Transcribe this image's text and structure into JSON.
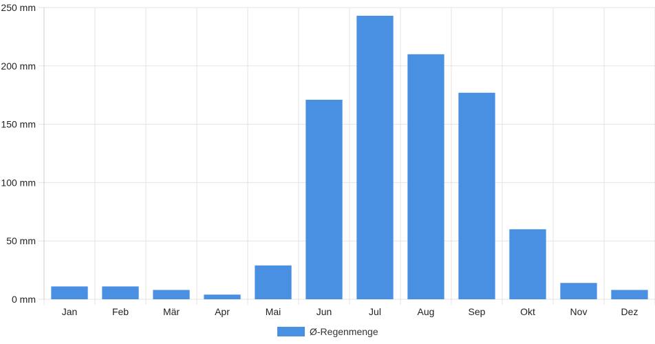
{
  "chart_data": {
    "type": "bar",
    "categories": [
      "Jan",
      "Feb",
      "Mär",
      "Apr",
      "Mai",
      "Jun",
      "Jul",
      "Aug",
      "Sep",
      "Okt",
      "Nov",
      "Dez"
    ],
    "series": [
      {
        "name": "Ø-Regenmenge",
        "values": [
          11,
          11,
          8,
          4,
          29,
          171,
          243,
          210,
          177,
          60,
          14,
          8
        ],
        "color": "#4a90e2"
      }
    ],
    "ylim": [
      0,
      250
    ],
    "yticks": [
      0,
      50,
      100,
      150,
      200,
      250
    ],
    "y_unit_suffix": " mm",
    "grid": true,
    "legend_position": "bottom",
    "title": "",
    "xlabel": "",
    "ylabel": ""
  }
}
